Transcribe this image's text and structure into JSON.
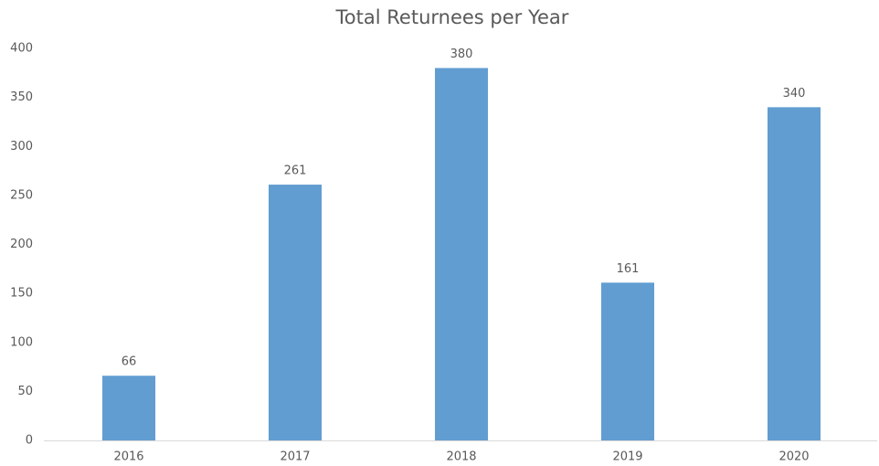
{
  "chart_data": {
    "type": "bar",
    "title": "Total Returnees per Year",
    "categories": [
      "2016",
      "2017",
      "2018",
      "2019",
      "2020"
    ],
    "values": [
      66,
      261,
      380,
      161,
      340
    ],
    "color": "#619dd1",
    "ylim": [
      0,
      400
    ],
    "yticks": [
      0,
      50,
      100,
      150,
      200,
      250,
      300,
      350,
      400
    ],
    "grid": false
  }
}
